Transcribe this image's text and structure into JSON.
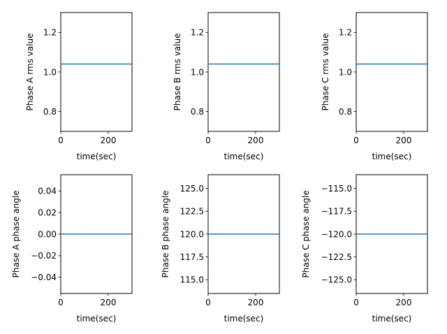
{
  "figure": {
    "background": "#ffffff",
    "line_color": "#1f77b4"
  },
  "chart_data": [
    {
      "type": "line",
      "xlabel": "time(sec)",
      "ylabel": "Phase A rms value",
      "xlim": [
        0,
        300
      ],
      "ylim": [
        0.7,
        1.3
      ],
      "xticks": [
        0,
        200
      ],
      "xtick_labels": [
        "0",
        "200"
      ],
      "yticks": [
        0.8,
        1.0,
        1.2
      ],
      "ytick_labels": [
        "0.8",
        "1.0",
        "1.2"
      ],
      "series": [
        {
          "x": [
            0,
            300
          ],
          "y": [
            1.04,
            1.04
          ]
        }
      ]
    },
    {
      "type": "line",
      "xlabel": "time(sec)",
      "ylabel": "Phase B rms value",
      "xlim": [
        0,
        300
      ],
      "ylim": [
        0.7,
        1.3
      ],
      "xticks": [
        0,
        200
      ],
      "xtick_labels": [
        "0",
        "200"
      ],
      "yticks": [
        0.8,
        1.0,
        1.2
      ],
      "ytick_labels": [
        "0.8",
        "1.0",
        "1.2"
      ],
      "series": [
        {
          "x": [
            0,
            300
          ],
          "y": [
            1.04,
            1.04
          ]
        }
      ]
    },
    {
      "type": "line",
      "xlabel": "time(sec)",
      "ylabel": "Phase C rms value",
      "xlim": [
        0,
        300
      ],
      "ylim": [
        0.7,
        1.3
      ],
      "xticks": [
        0,
        200
      ],
      "xtick_labels": [
        "0",
        "200"
      ],
      "yticks": [
        0.8,
        1.0,
        1.2
      ],
      "ytick_labels": [
        "0.8",
        "1.0",
        "1.2"
      ],
      "series": [
        {
          "x": [
            0,
            300
          ],
          "y": [
            1.04,
            1.04
          ]
        }
      ]
    },
    {
      "type": "line",
      "xlabel": "time(sec)",
      "ylabel": "Phase A phase angle",
      "xlim": [
        0,
        300
      ],
      "ylim": [
        -0.055,
        0.055
      ],
      "xticks": [
        0,
        200
      ],
      "xtick_labels": [
        "0",
        "200"
      ],
      "yticks": [
        -0.04,
        -0.02,
        0.0,
        0.02,
        0.04
      ],
      "ytick_labels": [
        "−0.04",
        "−0.02",
        "0.00",
        "0.02",
        "0.04"
      ],
      "series": [
        {
          "x": [
            0,
            300
          ],
          "y": [
            0.0,
            0.0
          ]
        }
      ]
    },
    {
      "type": "line",
      "xlabel": "time(sec)",
      "ylabel": "Phase B phase angle",
      "xlim": [
        0,
        300
      ],
      "ylim": [
        113.5,
        126.5
      ],
      "xticks": [
        0,
        200
      ],
      "xtick_labels": [
        "0",
        "200"
      ],
      "yticks": [
        115.0,
        117.5,
        120.0,
        122.5,
        125.0
      ],
      "ytick_labels": [
        "115.0",
        "117.5",
        "120.0",
        "122.5",
        "125.0"
      ],
      "series": [
        {
          "x": [
            0,
            300
          ],
          "y": [
            120.0,
            120.0
          ]
        }
      ]
    },
    {
      "type": "line",
      "xlabel": "time(sec)",
      "ylabel": "Phase C phase angle",
      "xlim": [
        0,
        300
      ],
      "ylim": [
        -126.5,
        -113.5
      ],
      "xticks": [
        0,
        200
      ],
      "xtick_labels": [
        "0",
        "200"
      ],
      "yticks": [
        -125.0,
        -122.5,
        -120.0,
        -117.5,
        -115.0
      ],
      "ytick_labels": [
        "−125.0",
        "−122.5",
        "−120.0",
        "−117.5",
        "−115.0"
      ],
      "series": [
        {
          "x": [
            0,
            300
          ],
          "y": [
            -120.0,
            -120.0
          ]
        }
      ]
    }
  ]
}
